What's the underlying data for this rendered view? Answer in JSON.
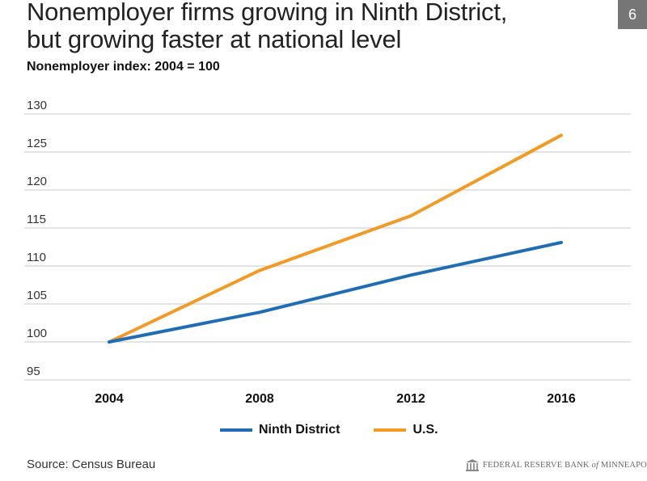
{
  "slide": {
    "number": "6"
  },
  "chart_data": {
    "type": "line",
    "title_lines": [
      "Nonemployer firms growing in Ninth District,",
      "but growing faster at national level"
    ],
    "subtitle": "Nonemployer index: 2004 = 100",
    "categories": [
      "2004",
      "2008",
      "2012",
      "2016"
    ],
    "x": [
      2004,
      2008,
      2012,
      2016
    ],
    "ylim": [
      95,
      130
    ],
    "yticks": [
      95,
      100,
      105,
      110,
      115,
      120,
      125,
      130
    ],
    "grid": true,
    "series": [
      {
        "name": "Ninth District",
        "color": "#1f6db5",
        "values": [
          100,
          103.9,
          108.8,
          113.1
        ]
      },
      {
        "name": "U.S.",
        "color": "#f39a24",
        "values": [
          100,
          109.4,
          116.6,
          127.2
        ]
      }
    ],
    "legend_position": "bottom-center"
  },
  "footer": {
    "source": "Source: Census Bureau",
    "logo_prefix": "FEDERAL RESERVE BANK",
    "logo_of": "of",
    "logo_suffix": "MINNEAPOLIS"
  }
}
